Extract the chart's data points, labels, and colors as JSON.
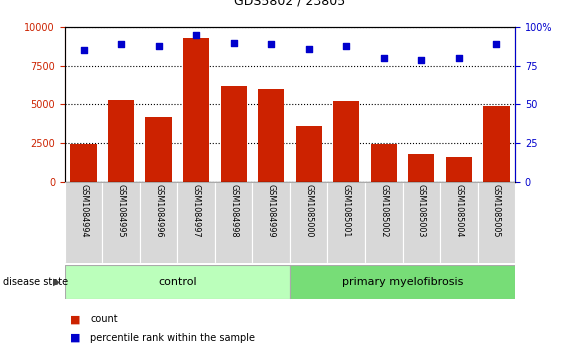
{
  "title": "GDS5802 / 23805",
  "samples": [
    "GSM1084994",
    "GSM1084995",
    "GSM1084996",
    "GSM1084997",
    "GSM1084998",
    "GSM1084999",
    "GSM1085000",
    "GSM1085001",
    "GSM1085002",
    "GSM1085003",
    "GSM1085004",
    "GSM1085005"
  ],
  "counts": [
    2400,
    5300,
    4200,
    9300,
    6200,
    6000,
    3600,
    5200,
    2400,
    1800,
    1600,
    4900
  ],
  "percentiles": [
    85,
    89,
    88,
    95,
    90,
    89,
    86,
    88,
    80,
    79,
    80,
    89
  ],
  "bar_color": "#cc2200",
  "dot_color": "#0000cc",
  "ylim_left": [
    0,
    10000
  ],
  "ylim_right": [
    0,
    100
  ],
  "yticks_left": [
    0,
    2500,
    5000,
    7500,
    10000
  ],
  "yticks_right": [
    0,
    25,
    50,
    75,
    100
  ],
  "grid_color": "black",
  "control_label": "control",
  "disease_label": "primary myelofibrosis",
  "control_count": 6,
  "legend_count_label": "count",
  "legend_pct_label": "percentile rank within the sample",
  "disease_state_label": "disease state",
  "control_color": "#bbffbb",
  "disease_color": "#77dd77",
  "bar_color_hex": "#cc2200",
  "dot_color_hex": "#0000cc",
  "bar_width": 0.7,
  "label_box_color": "#d8d8d8",
  "tick_label_color_left": "#cc2200",
  "tick_label_color_right": "#0000cc"
}
